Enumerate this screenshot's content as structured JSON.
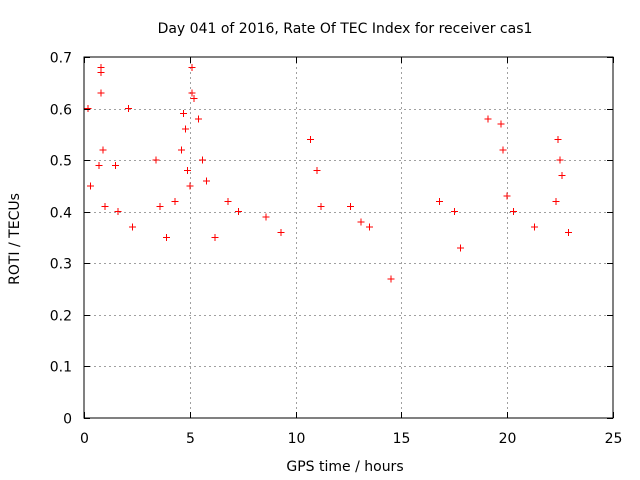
{
  "chart_data": {
    "type": "scatter",
    "title": "Day 041 of 2016, Rate Of TEC Index for receiver cas1",
    "xlabel": "GPS time / hours",
    "ylabel": "ROTI / TECUs",
    "xlim": [
      0,
      25
    ],
    "ylim": [
      0,
      0.7
    ],
    "xticks": [
      0,
      5,
      10,
      15,
      20,
      25
    ],
    "xtick_labels": [
      "0",
      "5",
      "10",
      "15",
      "20",
      "25"
    ],
    "yticks": [
      0,
      0.1,
      0.2,
      0.3,
      0.4,
      0.5,
      0.6,
      0.7
    ],
    "ytick_labels": [
      "0",
      "0.1",
      "0.2",
      "0.3",
      "0.4",
      "0.5",
      "0.6",
      "0.7"
    ],
    "grid": true,
    "marker": "+",
    "series_color": "#ff0000",
    "points": [
      [
        0.2,
        0.6
      ],
      [
        0.3,
        0.45
      ],
      [
        0.7,
        0.49
      ],
      [
        0.8,
        0.68
      ],
      [
        0.8,
        0.67
      ],
      [
        0.8,
        0.63
      ],
      [
        0.9,
        0.52
      ],
      [
        1.0,
        0.41
      ],
      [
        1.5,
        0.49
      ],
      [
        1.6,
        0.4
      ],
      [
        2.1,
        0.6
      ],
      [
        2.3,
        0.37
      ],
      [
        3.4,
        0.5
      ],
      [
        3.6,
        0.41
      ],
      [
        3.9,
        0.35
      ],
      [
        4.3,
        0.42
      ],
      [
        4.6,
        0.52
      ],
      [
        4.7,
        0.59
      ],
      [
        4.8,
        0.56
      ],
      [
        4.9,
        0.48
      ],
      [
        5.0,
        0.45
      ],
      [
        5.1,
        0.68
      ],
      [
        5.1,
        0.63
      ],
      [
        5.2,
        0.62
      ],
      [
        5.4,
        0.58
      ],
      [
        5.6,
        0.5
      ],
      [
        5.8,
        0.46
      ],
      [
        6.2,
        0.35
      ],
      [
        6.8,
        0.42
      ],
      [
        7.3,
        0.4
      ],
      [
        8.6,
        0.39
      ],
      [
        9.3,
        0.36
      ],
      [
        10.7,
        0.54
      ],
      [
        11.0,
        0.48
      ],
      [
        11.2,
        0.41
      ],
      [
        12.6,
        0.41
      ],
      [
        13.1,
        0.38
      ],
      [
        13.5,
        0.37
      ],
      [
        14.5,
        0.27
      ],
      [
        16.8,
        0.42
      ],
      [
        17.5,
        0.4
      ],
      [
        17.8,
        0.33
      ],
      [
        19.1,
        0.58
      ],
      [
        19.7,
        0.57
      ],
      [
        19.8,
        0.52
      ],
      [
        20.0,
        0.43
      ],
      [
        20.3,
        0.4
      ],
      [
        21.3,
        0.37
      ],
      [
        22.3,
        0.42
      ],
      [
        22.4,
        0.54
      ],
      [
        22.5,
        0.5
      ],
      [
        22.6,
        0.47
      ],
      [
        22.9,
        0.36
      ]
    ]
  }
}
